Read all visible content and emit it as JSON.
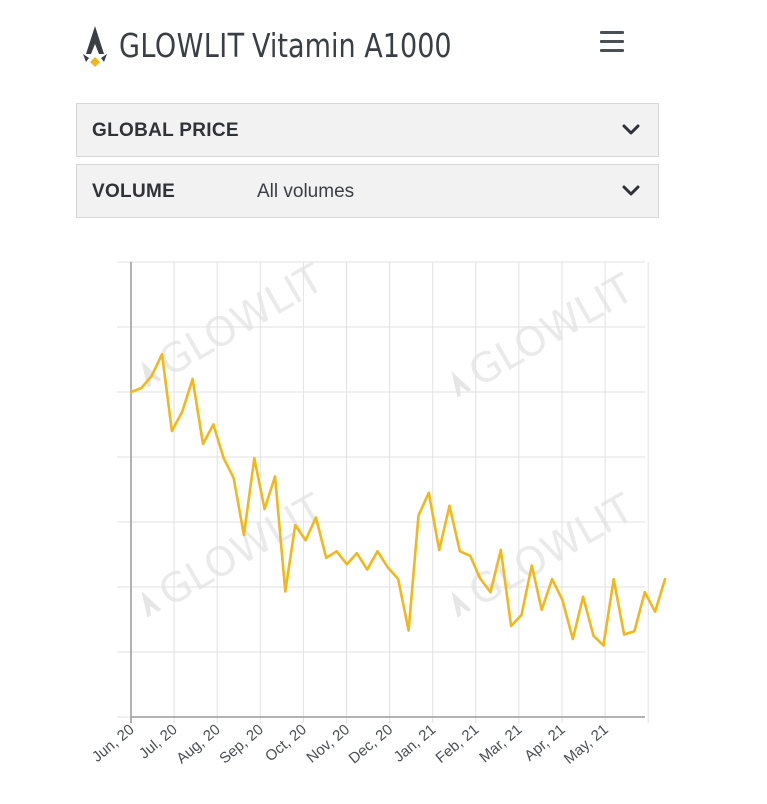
{
  "header": {
    "brand": "GLOWLIT",
    "product": "Vitamin A1000",
    "logo_icon": "glowlit-rocket-icon",
    "menu_icon": "hamburger-menu-icon"
  },
  "filters": {
    "price": {
      "label": "GLOBAL PRICE",
      "value": ""
    },
    "volume": {
      "label": "VOLUME",
      "value": "All volumes"
    },
    "chevron_icon": "chevron-down-icon"
  },
  "watermark": "GLOWLIT",
  "colors": {
    "line": "#f2b71b",
    "text": "#3a3f45",
    "grid": "#e2e2e2",
    "panel": "#f2f2f2"
  },
  "chart_data": {
    "type": "line",
    "title": "",
    "xlabel": "",
    "ylabel": "",
    "grid": true,
    "tick_labels": [
      "Jun, 20",
      "Jul, 20",
      "Aug, 20",
      "Sep, 20",
      "Oct, 20",
      "Nov, 20",
      "Dec, 20",
      "Jan, 21",
      "Feb, 21",
      "Mar, 21",
      "Apr, 21",
      "May, 21"
    ],
    "ylim": [
      0,
      7
    ],
    "series": [
      {
        "name": "",
        "x": [
          0,
          0.24,
          0.48,
          0.72,
          0.95,
          1.19,
          1.43,
          1.67,
          1.91,
          2.15,
          2.38,
          2.62,
          2.86,
          3.1,
          3.34,
          3.58,
          3.81,
          4.05,
          4.29,
          4.53,
          4.77,
          5.01,
          5.24,
          5.48,
          5.72,
          5.96,
          6.2,
          6.44,
          6.67,
          6.91,
          7.15,
          7.39,
          7.63,
          7.87,
          8.1,
          8.34,
          8.58,
          8.82,
          9.06,
          9.3,
          9.53,
          9.77,
          10.01,
          10.25,
          10.49,
          10.73,
          10.96,
          11.2,
          11.44,
          11.68,
          11.92,
          12.16,
          12.39
        ],
        "values": [
          5.0,
          5.06,
          5.25,
          5.58,
          4.4,
          4.7,
          5.2,
          4.2,
          4.5,
          3.98,
          3.68,
          2.8,
          3.98,
          3.2,
          3.7,
          1.93,
          2.95,
          2.72,
          3.07,
          2.45,
          2.55,
          2.35,
          2.52,
          2.27,
          2.55,
          2.3,
          2.12,
          1.33,
          3.1,
          3.45,
          2.57,
          3.25,
          2.55,
          2.48,
          2.13,
          1.92,
          2.57,
          1.4,
          1.57,
          2.33,
          1.65,
          2.12,
          1.8,
          1.2,
          1.85,
          1.25,
          1.1,
          2.12,
          1.27,
          1.32,
          1.92,
          1.62,
          2.12
        ]
      }
    ]
  }
}
